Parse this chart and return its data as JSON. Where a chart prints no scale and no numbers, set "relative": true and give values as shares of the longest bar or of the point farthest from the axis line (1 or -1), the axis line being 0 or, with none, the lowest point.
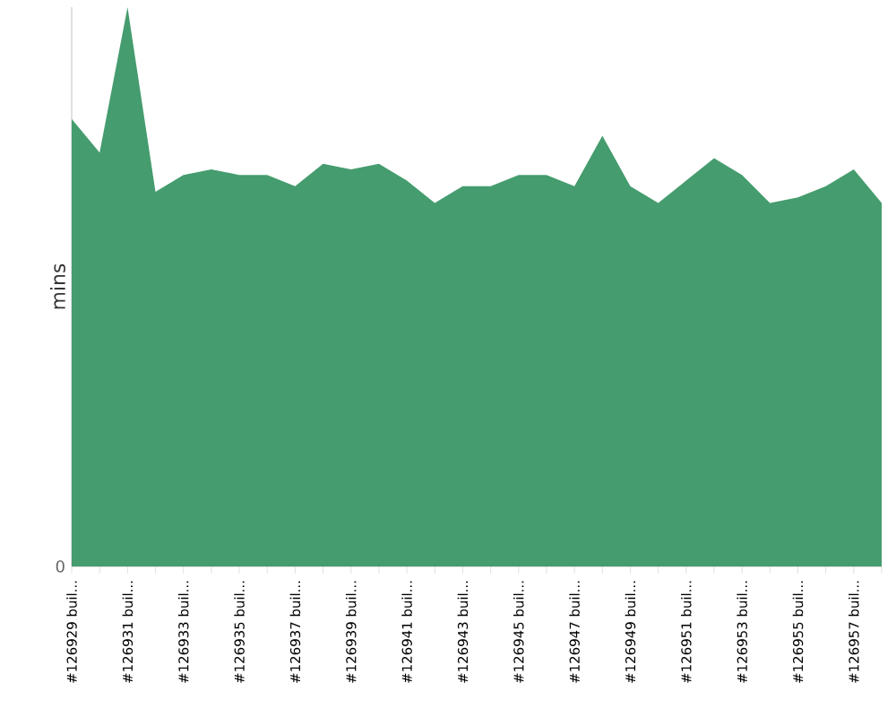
{
  "chart_data": {
    "type": "area",
    "ylabel": "mins",
    "relative": true,
    "annotations": [
      "0"
    ],
    "color": "#459c6e",
    "categories": [
      "#126929 buil...",
      null,
      "#126931 buil...",
      null,
      "#126933 buil...",
      null,
      "#126935 buil...",
      null,
      "#126937 buil...",
      null,
      "#126939 buil...",
      null,
      "#126941 buil...",
      null,
      "#126943 buil...",
      null,
      "#126945 buil...",
      null,
      "#126947 buil...",
      null,
      "#126949 buil...",
      null,
      "#126951 buil...",
      null,
      "#126953 buil...",
      null,
      "#126955 buil...",
      null,
      "#126957 buil...",
      null
    ],
    "values": [
      0.8,
      0.74,
      1,
      0.67,
      0.7,
      0.71,
      0.7,
      0.7,
      0.68,
      0.72,
      0.71,
      0.72,
      0.69,
      0.65,
      0.68,
      0.68,
      0.7,
      0.7,
      0.68,
      0.77,
      0.68,
      0.65,
      0.69,
      0.73,
      0.7,
      0.65,
      0.66,
      0.68,
      0.71,
      0.65
    ]
  }
}
